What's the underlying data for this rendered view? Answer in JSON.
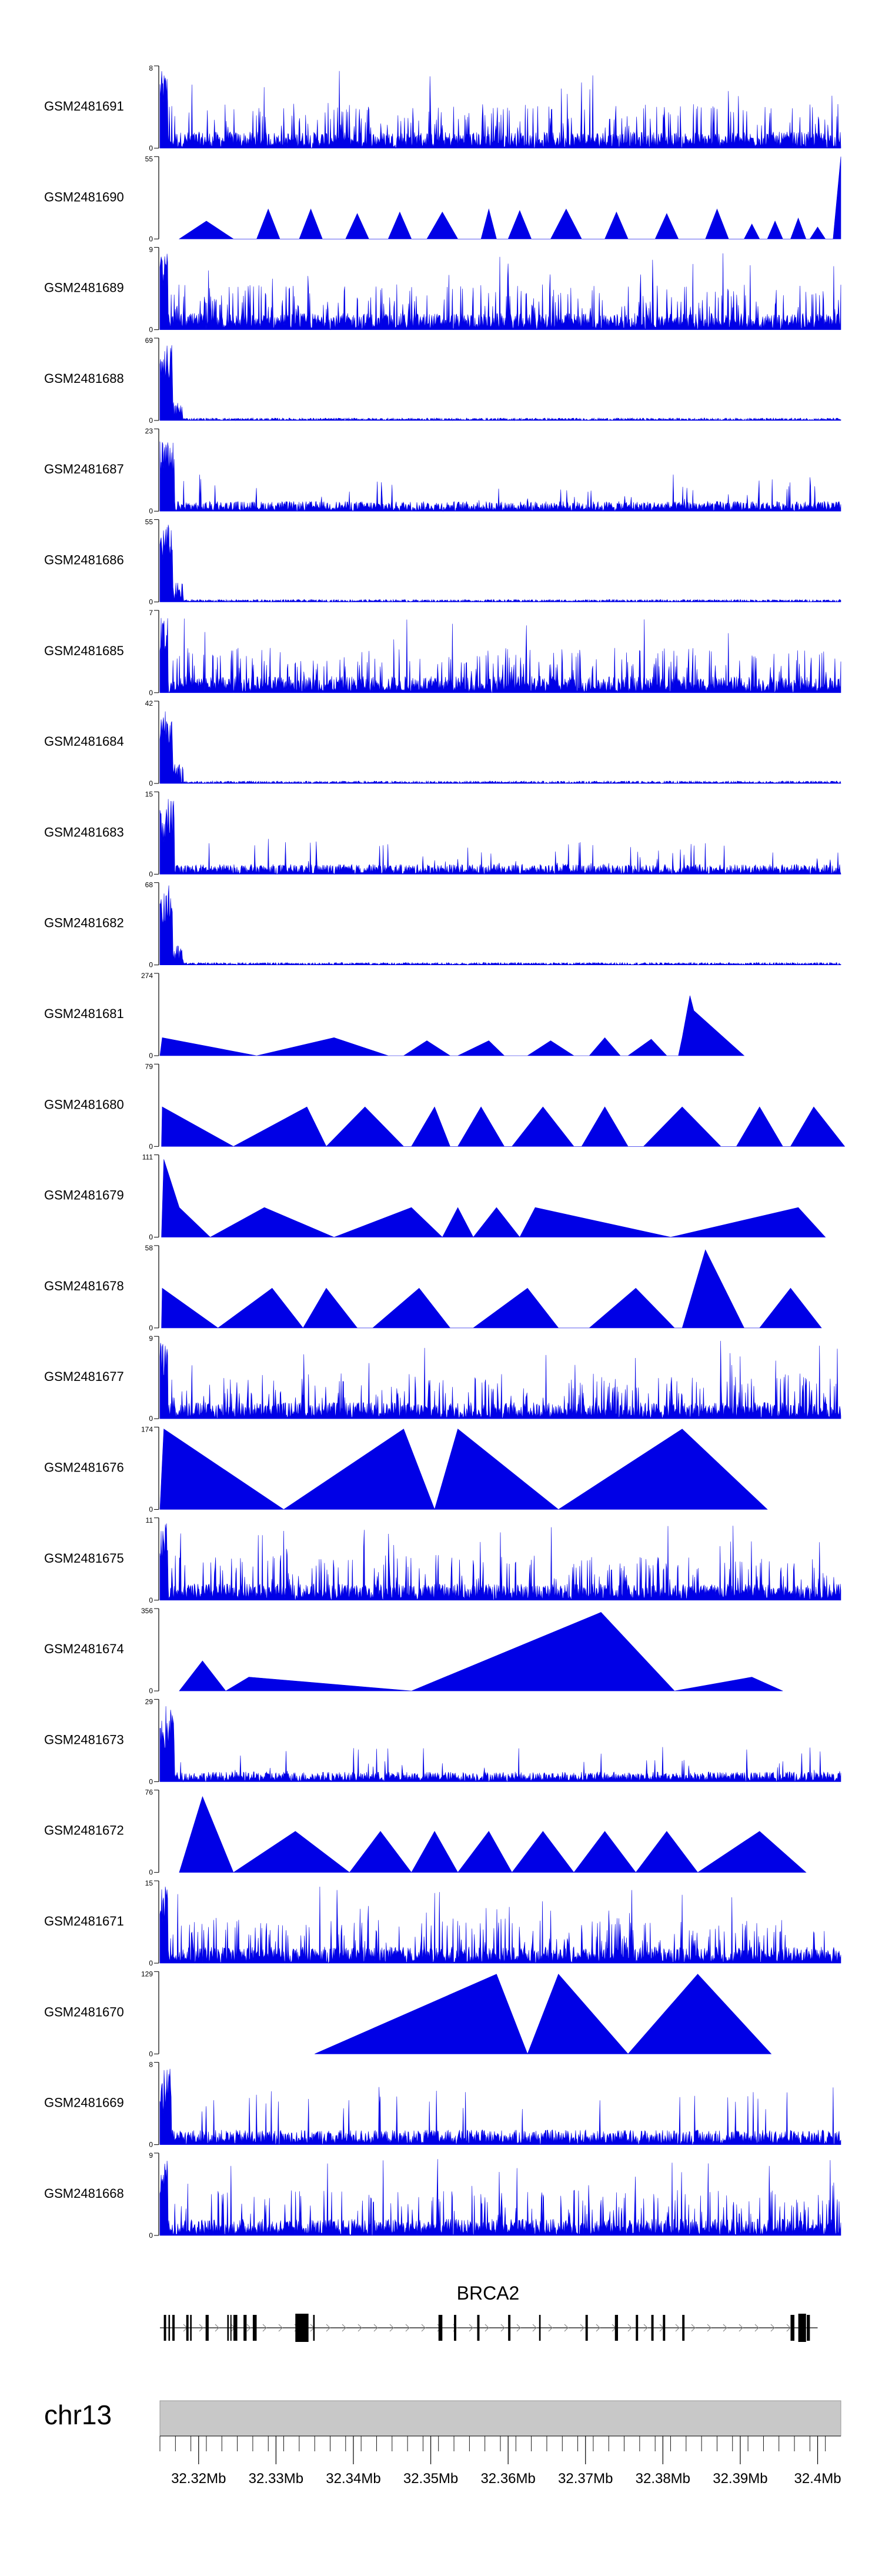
{
  "chart_data": {
    "type": "area",
    "chromosome": "chr13",
    "gene": "BRCA2",
    "x_ticks": [
      "32.32Mb",
      "32.33Mb",
      "32.34Mb",
      "32.35Mb",
      "32.36Mb",
      "32.37Mb",
      "32.38Mb",
      "32.39Mb",
      "32.4Mb"
    ],
    "x_tick_values": [
      32.32,
      32.33,
      32.34,
      32.35,
      32.36,
      32.37,
      32.38,
      32.39,
      32.4
    ],
    "xlim": [
      32.315,
      32.403
    ],
    "colors": {
      "track_fill": "#0000e6",
      "ideogram": "#c8c8c8"
    },
    "tracks": [
      {
        "name": "GSM2481691",
        "ymax": 8,
        "ymin_label": "0",
        "ymax_label": "8",
        "pattern": "dense",
        "points": [
          [
            32.315,
            7.5
          ],
          [
            32.3155,
            3.0
          ],
          [
            32.402,
            6.5
          ]
        ]
      },
      {
        "name": "GSM2481690",
        "ymax": 55,
        "ymin_label": "0",
        "ymax_label": "55",
        "pattern": "triangles",
        "points": [
          [
            32.3175,
            0
          ],
          [
            32.321,
            12
          ],
          [
            32.3245,
            0
          ],
          [
            32.3275,
            0
          ],
          [
            32.329,
            20
          ],
          [
            32.3305,
            0
          ],
          [
            32.333,
            0
          ],
          [
            32.3345,
            20
          ],
          [
            32.336,
            0
          ],
          [
            32.339,
            0
          ],
          [
            32.3405,
            17
          ],
          [
            32.342,
            0
          ],
          [
            32.3445,
            0
          ],
          [
            32.346,
            18
          ],
          [
            32.3475,
            0
          ],
          [
            32.3495,
            0
          ],
          [
            32.3515,
            18
          ],
          [
            32.3535,
            0
          ],
          [
            32.3565,
            0
          ],
          [
            32.3575,
            20
          ],
          [
            32.3585,
            0
          ],
          [
            32.36,
            0
          ],
          [
            32.3615,
            19
          ],
          [
            32.363,
            0
          ],
          [
            32.3655,
            0
          ],
          [
            32.3675,
            20
          ],
          [
            32.3695,
            0
          ],
          [
            32.3725,
            0
          ],
          [
            32.374,
            18
          ],
          [
            32.3755,
            0
          ],
          [
            32.379,
            0
          ],
          [
            32.3805,
            17
          ],
          [
            32.382,
            0
          ],
          [
            32.3855,
            0
          ],
          [
            32.387,
            20
          ],
          [
            32.3885,
            0
          ],
          [
            32.3905,
            0
          ],
          [
            32.3915,
            10
          ],
          [
            32.3925,
            0
          ],
          [
            32.3935,
            0
          ],
          [
            32.3945,
            12
          ],
          [
            32.3955,
            0
          ],
          [
            32.3965,
            0
          ],
          [
            32.3975,
            14
          ],
          [
            32.3985,
            0
          ],
          [
            32.399,
            0
          ],
          [
            32.4,
            8
          ],
          [
            32.401,
            0
          ],
          [
            32.402,
            0
          ],
          [
            32.403,
            55
          ]
        ]
      },
      {
        "name": "GSM2481689",
        "ymax": 9,
        "ymin_label": "0",
        "ymax_label": "9",
        "pattern": "dense",
        "points": [
          [
            32.3155,
            8.5
          ],
          [
            32.3165,
            6.0
          ]
        ]
      },
      {
        "name": "GSM2481688",
        "ymax": 69,
        "ymin_label": "0",
        "ymax_label": "69",
        "pattern": "peak",
        "points": [
          [
            32.3155,
            65
          ]
        ]
      },
      {
        "name": "GSM2481687",
        "ymax": 23,
        "ymin_label": "0",
        "ymax_label": "23",
        "pattern": "peak_low",
        "points": [
          [
            32.3158,
            20
          ],
          [
            32.402,
            5
          ]
        ]
      },
      {
        "name": "GSM2481686",
        "ymax": 55,
        "ymin_label": "0",
        "ymax_label": "55",
        "pattern": "peak",
        "points": [
          [
            32.3155,
            52
          ]
        ]
      },
      {
        "name": "GSM2481685",
        "ymax": 7,
        "ymin_label": "0",
        "ymax_label": "7",
        "pattern": "dense",
        "points": [
          [
            32.3155,
            6.5
          ]
        ]
      },
      {
        "name": "GSM2481684",
        "ymax": 42,
        "ymin_label": "0",
        "ymax_label": "42",
        "pattern": "peak",
        "points": [
          [
            32.3155,
            40
          ]
        ]
      },
      {
        "name": "GSM2481683",
        "ymax": 15,
        "ymin_label": "0",
        "ymax_label": "15",
        "pattern": "peak_low",
        "points": [
          [
            32.3155,
            14
          ]
        ]
      },
      {
        "name": "GSM2481682",
        "ymax": 68,
        "ymin_label": "0",
        "ymax_label": "68",
        "pattern": "peak",
        "points": [
          [
            32.3158,
            66
          ]
        ]
      },
      {
        "name": "GSM2481681",
        "ymax": 274,
        "ymin_label": "0",
        "ymax_label": "274",
        "pattern": "triangles",
        "points": [
          [
            32.315,
            0
          ],
          [
            32.3153,
            60
          ],
          [
            32.3275,
            0
          ],
          [
            32.3375,
            60
          ],
          [
            32.3445,
            0
          ],
          [
            32.3465,
            0
          ],
          [
            32.3495,
            50
          ],
          [
            32.3525,
            0
          ],
          [
            32.3535,
            0
          ],
          [
            32.3575,
            50
          ],
          [
            32.3595,
            0
          ],
          [
            32.3625,
            0
          ],
          [
            32.3655,
            50
          ],
          [
            32.3685,
            0
          ],
          [
            32.3705,
            0
          ],
          [
            32.3725,
            60
          ],
          [
            32.3745,
            0
          ],
          [
            32.3755,
            0
          ],
          [
            32.3785,
            55
          ],
          [
            32.3805,
            0
          ],
          [
            32.382,
            0
          ],
          [
            32.3825,
            60
          ],
          [
            32.3835,
            200
          ],
          [
            32.384,
            150
          ],
          [
            32.3905,
            0
          ]
        ]
      },
      {
        "name": "GSM2481680",
        "ymax": 79,
        "ymin_label": "0",
        "ymax_label": "79",
        "pattern": "triangles",
        "points": [
          [
            32.3152,
            0
          ],
          [
            32.3153,
            38
          ],
          [
            32.3245,
            0
          ],
          [
            32.334,
            38
          ],
          [
            32.3365,
            0
          ],
          [
            32.3415,
            38
          ],
          [
            32.3465,
            0
          ],
          [
            32.3475,
            0
          ],
          [
            32.3505,
            38
          ],
          [
            32.3525,
            0
          ],
          [
            32.3535,
            0
          ],
          [
            32.3565,
            38
          ],
          [
            32.3595,
            0
          ],
          [
            32.3605,
            0
          ],
          [
            32.3645,
            38
          ],
          [
            32.3685,
            0
          ],
          [
            32.3695,
            0
          ],
          [
            32.3725,
            38
          ],
          [
            32.3755,
            0
          ],
          [
            32.3775,
            0
          ],
          [
            32.3825,
            38
          ],
          [
            32.3875,
            0
          ],
          [
            32.3895,
            0
          ],
          [
            32.3925,
            38
          ],
          [
            32.3955,
            0
          ],
          [
            32.3965,
            0
          ],
          [
            32.3995,
            38
          ],
          [
            32.4035,
            0
          ]
        ]
      },
      {
        "name": "GSM2481679",
        "ymax": 111,
        "ymin_label": "0",
        "ymax_label": "111",
        "pattern": "triangles",
        "points": [
          [
            32.3152,
            0
          ],
          [
            32.3155,
            105
          ],
          [
            32.3175,
            40
          ],
          [
            32.3215,
            0
          ],
          [
            32.3285,
            40
          ],
          [
            32.3375,
            0
          ],
          [
            32.3475,
            40
          ],
          [
            32.3515,
            0
          ],
          [
            32.3535,
            40
          ],
          [
            32.3555,
            0
          ],
          [
            32.3585,
            40
          ],
          [
            32.3615,
            0
          ],
          [
            32.3635,
            40
          ],
          [
            32.381,
            0
          ],
          [
            32.3975,
            40
          ],
          [
            32.401,
            0
          ]
        ]
      },
      {
        "name": "GSM2481678",
        "ymax": 58,
        "ymin_label": "0",
        "ymax_label": "58",
        "pattern": "triangles",
        "points": [
          [
            32.3152,
            0
          ],
          [
            32.3153,
            28
          ],
          [
            32.3225,
            0
          ],
          [
            32.3295,
            28
          ],
          [
            32.3335,
            0
          ],
          [
            32.3365,
            28
          ],
          [
            32.3405,
            0
          ],
          [
            32.3425,
            0
          ],
          [
            32.3485,
            28
          ],
          [
            32.3525,
            0
          ],
          [
            32.3555,
            0
          ],
          [
            32.3625,
            28
          ],
          [
            32.3665,
            0
          ],
          [
            32.3705,
            0
          ],
          [
            32.3765,
            28
          ],
          [
            32.3815,
            0
          ],
          [
            32.3825,
            0
          ],
          [
            32.3855,
            55
          ],
          [
            32.3905,
            0
          ],
          [
            32.3925,
            0
          ],
          [
            32.3965,
            28
          ],
          [
            32.4005,
            0
          ]
        ]
      },
      {
        "name": "GSM2481677",
        "ymax": 9,
        "ymin_label": "0",
        "ymax_label": "9",
        "pattern": "dense",
        "points": [
          [
            32.3155,
            8.5
          ]
        ]
      },
      {
        "name": "GSM2481676",
        "ymax": 174,
        "ymin_label": "0",
        "ymax_label": "174",
        "pattern": "triangles",
        "points": [
          [
            32.315,
            0
          ],
          [
            32.3155,
            170
          ],
          [
            32.331,
            0
          ],
          [
            32.3465,
            170
          ],
          [
            32.3505,
            0
          ],
          [
            32.3535,
            170
          ],
          [
            32.3665,
            0
          ],
          [
            32.3825,
            170
          ],
          [
            32.3935,
            0
          ]
        ]
      },
      {
        "name": "GSM2481675",
        "ymax": 11,
        "ymin_label": "0",
        "ymax_label": "11",
        "pattern": "dense",
        "points": [
          [
            32.3155,
            10.5
          ]
        ]
      },
      {
        "name": "GSM2481674",
        "ymax": 356,
        "ymin_label": "0",
        "ymax_label": "356",
        "pattern": "triangles",
        "points": [
          [
            32.3175,
            0
          ],
          [
            32.3205,
            130
          ],
          [
            32.3235,
            0
          ],
          [
            32.3265,
            60
          ],
          [
            32.3475,
            0
          ],
          [
            32.372,
            340
          ],
          [
            32.3815,
            0
          ],
          [
            32.3915,
            60
          ],
          [
            32.3955,
            0
          ]
        ]
      },
      {
        "name": "GSM2481673",
        "ymax": 29,
        "ymin_label": "0",
        "ymax_label": "29",
        "pattern": "peak_low",
        "points": [
          [
            32.3155,
            27
          ]
        ]
      },
      {
        "name": "GSM2481672",
        "ymax": 76,
        "ymin_label": "0",
        "ymax_label": "76",
        "pattern": "triangles",
        "points": [
          [
            32.3175,
            0
          ],
          [
            32.3205,
            70
          ],
          [
            32.3245,
            0
          ],
          [
            32.3325,
            38
          ],
          [
            32.3395,
            0
          ],
          [
            32.3435,
            38
          ],
          [
            32.3475,
            0
          ],
          [
            32.3505,
            38
          ],
          [
            32.3535,
            0
          ],
          [
            32.3575,
            38
          ],
          [
            32.3605,
            0
          ],
          [
            32.3645,
            38
          ],
          [
            32.3685,
            0
          ],
          [
            32.3725,
            38
          ],
          [
            32.3765,
            0
          ],
          [
            32.3805,
            38
          ],
          [
            32.3845,
            0
          ],
          [
            32.3925,
            38
          ],
          [
            32.3985,
            0
          ]
        ]
      },
      {
        "name": "GSM2481671",
        "ymax": 15,
        "ymin_label": "0",
        "ymax_label": "15",
        "pattern": "dense",
        "points": [
          [
            32.3155,
            14
          ]
        ]
      },
      {
        "name": "GSM2481670",
        "ymax": 129,
        "ymin_label": "0",
        "ymax_label": "129",
        "pattern": "triangles",
        "points": [
          [
            32.335,
            0
          ],
          [
            32.3585,
            125
          ],
          [
            32.3625,
            0
          ],
          [
            32.3665,
            125
          ],
          [
            32.3755,
            0
          ],
          [
            32.3845,
            125
          ],
          [
            32.394,
            0
          ]
        ]
      },
      {
        "name": "GSM2481669",
        "ymax": 8,
        "ymin_label": "0",
        "ymax_label": "8",
        "pattern": "dense_low",
        "points": [
          [
            32.3155,
            7.5
          ]
        ]
      },
      {
        "name": "GSM2481668",
        "ymax": 9,
        "ymin_label": "0",
        "ymax_label": "9",
        "pattern": "dense",
        "points": [
          [
            32.3155,
            8.5
          ]
        ]
      }
    ],
    "gene_model": {
      "name": "BRCA2",
      "start": 32.315,
      "end": 32.4,
      "exons": [
        [
          32.3155,
          32.3158
        ],
        [
          32.3161,
          32.3163
        ],
        [
          32.3166,
          32.3169
        ],
        [
          32.3184,
          32.3187
        ],
        [
          32.3189,
          32.3191
        ],
        [
          32.3209,
          32.3213
        ],
        [
          32.3237,
          32.3239
        ],
        [
          32.3241,
          32.3242
        ],
        [
          32.3245,
          32.325
        ],
        [
          32.3258,
          32.3262
        ],
        [
          32.327,
          32.3275
        ],
        [
          32.3325,
          32.3342
        ],
        [
          32.3348,
          32.335
        ],
        [
          32.351,
          32.3515
        ],
        [
          32.353,
          32.3533
        ],
        [
          32.356,
          32.3563
        ],
        [
          32.36,
          32.3603
        ],
        [
          32.364,
          32.3642
        ],
        [
          32.37,
          32.3703
        ],
        [
          32.3738,
          32.3742
        ],
        [
          32.3765,
          32.3768
        ],
        [
          32.3785,
          32.3788
        ],
        [
          32.38,
          32.3803
        ],
        [
          32.3825,
          32.3828
        ],
        [
          32.3965,
          32.397
        ],
        [
          32.3975,
          32.3985
        ],
        [
          32.3986,
          32.399
        ]
      ]
    }
  }
}
